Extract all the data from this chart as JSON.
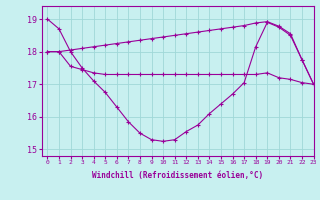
{
  "x": [
    0,
    1,
    2,
    3,
    4,
    5,
    6,
    7,
    8,
    9,
    10,
    11,
    12,
    13,
    14,
    15,
    16,
    17,
    18,
    19,
    20,
    21,
    22,
    23
  ],
  "line1": [
    19.0,
    18.7,
    18.0,
    17.5,
    17.1,
    16.75,
    16.3,
    15.85,
    15.5,
    15.3,
    15.25,
    15.3,
    15.55,
    15.75,
    16.1,
    16.4,
    16.7,
    17.05,
    18.15,
    18.9,
    18.75,
    18.5,
    17.75,
    17.0
  ],
  "line2": [
    18.0,
    18.0,
    17.55,
    17.45,
    17.35,
    17.3,
    17.3,
    17.3,
    17.3,
    17.3,
    17.3,
    17.3,
    17.3,
    17.3,
    17.3,
    17.3,
    17.3,
    17.3,
    17.3,
    17.35,
    17.2,
    17.15,
    17.05,
    17.0
  ],
  "line3": [
    18.0,
    18.0,
    18.05,
    18.1,
    18.15,
    18.2,
    18.25,
    18.3,
    18.35,
    18.4,
    18.45,
    18.5,
    18.55,
    18.6,
    18.65,
    18.7,
    18.75,
    18.8,
    18.88,
    18.92,
    18.78,
    18.55,
    17.75,
    17.0
  ],
  "bg_color": "#c8f0f0",
  "grid_color": "#a0d8d8",
  "line_color": "#990099",
  "xlabel": "Windchill (Refroidissement éolien,°C)",
  "ylim": [
    14.8,
    19.4
  ],
  "xlim": [
    -0.5,
    23
  ],
  "yticks": [
    15,
    16,
    17,
    18,
    19
  ],
  "xticks": [
    0,
    1,
    2,
    3,
    4,
    5,
    6,
    7,
    8,
    9,
    10,
    11,
    12,
    13,
    14,
    15,
    16,
    17,
    18,
    19,
    20,
    21,
    22,
    23
  ]
}
